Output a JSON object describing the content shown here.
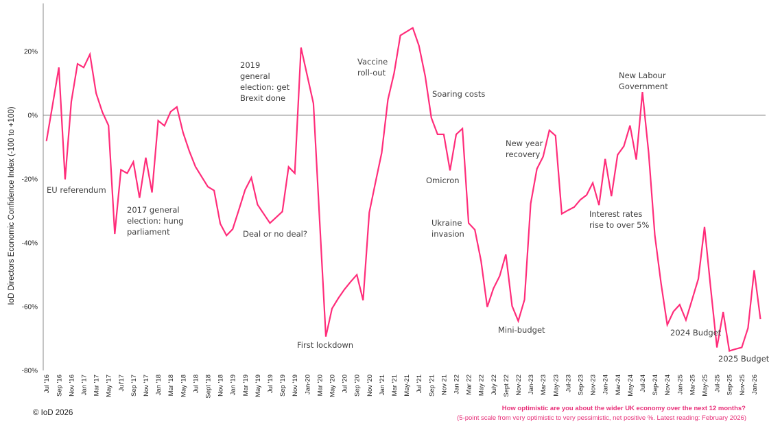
{
  "chart_data": {
    "type": "line",
    "ylabel": "IoD Directors Economic Confidence Index (-100 to +100)",
    "xlabel": "",
    "ylim": [
      -80,
      30
    ],
    "yticks": [
      "20%",
      "0%",
      "-20%",
      "-40%",
      "-60%",
      "-80%"
    ],
    "ytick_values": [
      20,
      0,
      -20,
      -40,
      -60,
      -80
    ],
    "grid": false,
    "zero_line": true,
    "line_color": "#ff2d7a",
    "x_start": "Jul 2016",
    "x_end": "Feb 2026",
    "x_frequency": "monthly",
    "xtick_labels": [
      "Jul '16",
      "Sep '16",
      "Nov '16",
      "Jan '17",
      "Mar '17",
      "May '17",
      "Jul'17",
      "Sep '17",
      "Nov '17",
      "Jan '18",
      "Mar '18",
      "May '18",
      "Jul '18",
      "Sept '18",
      "Nov '18",
      "Jan '19",
      "Mar '19",
      "May '19",
      "Jul '19",
      "Sep '19",
      "Nov '19",
      "Jan-20",
      "Mar '20",
      "May '20",
      "Jul '20",
      "Sep '20",
      "Nov '20",
      "Jan '21",
      "Mar '21",
      "May-21",
      "Jul '21",
      "Sep '21",
      "Nov 21",
      "Jan 22",
      "Mar 22",
      "May 22",
      "July 22",
      "Sept 22",
      "Nov-22",
      "Jan-23",
      "Mar-23",
      "May-23",
      "Jul-23",
      "Sep-23",
      "Nov-23",
      "Jan-24",
      "Mar-24",
      "May-24",
      "Jul-24",
      "Sep-24",
      "Nov-24",
      "Jan-25",
      "Mar-25",
      "May-25",
      "Jul-25",
      "Sep-25",
      "Nov-25",
      "Jan-26"
    ],
    "values": [
      -8.1,
      3.4,
      15.0,
      -20.1,
      4.2,
      16.1,
      15.0,
      19.1,
      6.9,
      1.0,
      -3.2,
      -37.2,
      -17.1,
      -18.2,
      -14.6,
      -25.9,
      -13.3,
      -24.2,
      -1.7,
      -3.3,
      1.1,
      2.6,
      -5.4,
      -11.2,
      -16.1,
      -19.3,
      -22.4,
      -23.6,
      -34.0,
      -37.7,
      -35.7,
      -29.6,
      -23.4,
      -19.6,
      -28.0,
      -30.9,
      -33.8,
      -32.0,
      -30.2,
      -16.2,
      -18.2,
      21.2,
      12.5,
      3.7,
      -32.8,
      -69.4,
      -60.6,
      -57.4,
      -54.6,
      -52.2,
      -50.0,
      -58.0,
      -30.5,
      -21.0,
      -11.8,
      4.9,
      13.2,
      25.0,
      26.2,
      27.4,
      21.8,
      12.3,
      -0.8,
      -6.0,
      -6.0,
      -17.3,
      -6.0,
      -4.2,
      -33.8,
      -35.9,
      -45.6,
      -60.1,
      -54.3,
      -50.4,
      -43.6,
      -59.8,
      -64.5,
      -57.8,
      -27.7,
      -16.8,
      -13.0,
      -4.7,
      -6.4,
      -30.9,
      -29.8,
      -28.8,
      -26.5,
      -25.0,
      -21.2,
      -28.2,
      -13.7,
      -25.4,
      -12.4,
      -9.7,
      -3.2,
      -13.9,
      7.3,
      -11.9,
      -37.7,
      -52.8,
      -65.7,
      -61.5,
      -59.4,
      -64.2,
      -57.8,
      -51.3,
      -35.0,
      -54.2,
      -72.8,
      -61.7,
      -73.9,
      -73.3,
      -72.8,
      -66.7,
      -48.6,
      -63.9
    ],
    "annotations": [
      "EU referendum",
      "2017 general\nelection: hung\nparliament",
      "Deal or no deal?",
      "2019\ngeneral\nelection: get\nBrexit done",
      "First lockdown",
      "Vaccine\nroll-out",
      "Soaring costs",
      "Omicron",
      "Ukraine\ninvasion",
      "Mini-budget",
      "New year\nrecovery",
      "Interest rates\nrise to over 5%",
      "New Labour\nGovernment",
      "2024 Budget",
      "2025 Budget"
    ]
  },
  "footer": {
    "copyright": "© IoD 2026",
    "question": "How optimistic are you about the wider UK economy over the next 12 months?",
    "note": "(5-point scale from very optimistic to very pessimistic, net positive %. Latest reading: February 2026)"
  }
}
